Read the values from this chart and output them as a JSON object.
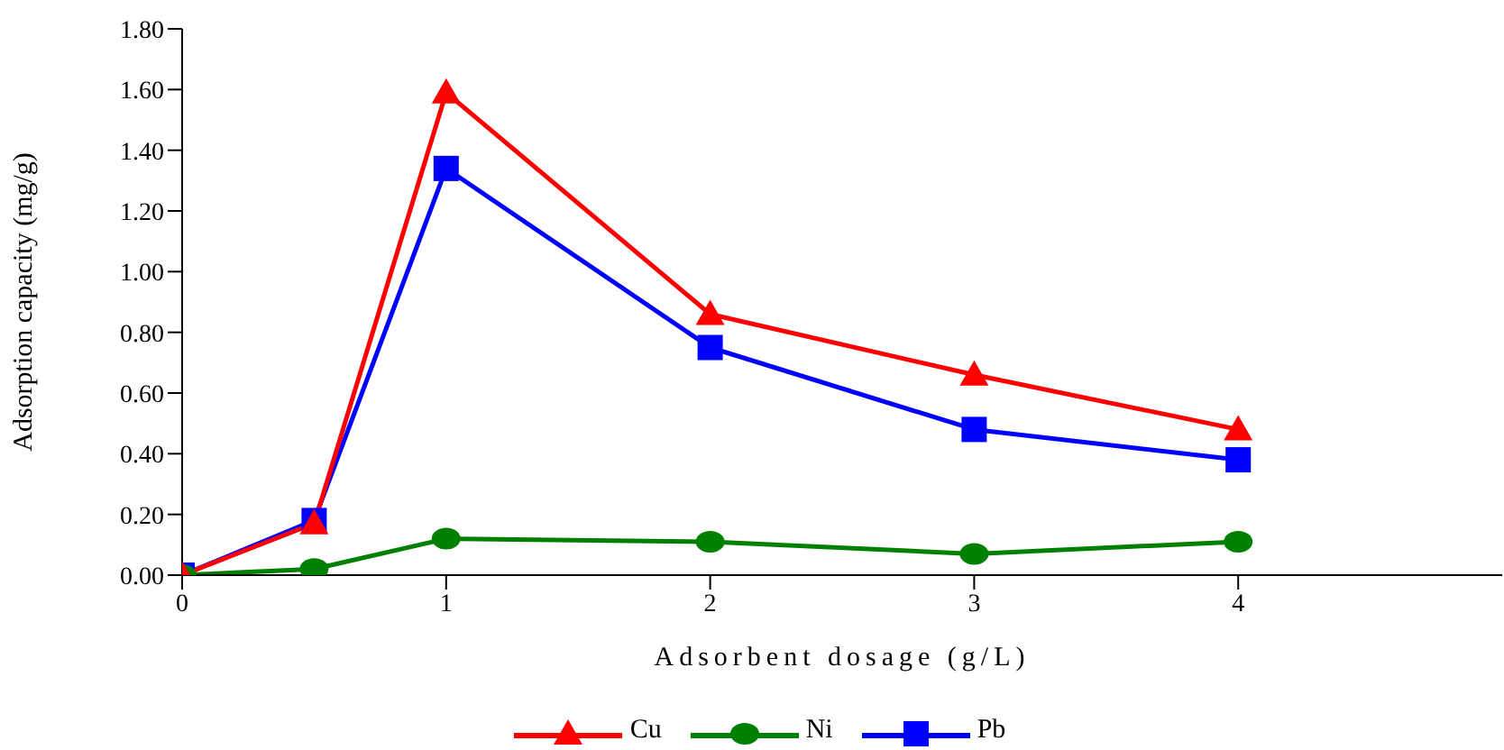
{
  "chart_data": {
    "type": "line",
    "xlabel": "Adsorbent dosage (g/L)",
    "ylabel": "Adsorption capacity (mg/g)",
    "x": [
      0,
      0.5,
      1,
      2,
      3,
      4
    ],
    "xlim": [
      0,
      5
    ],
    "xticks": [
      0,
      1,
      2,
      3,
      4
    ],
    "ylim": [
      0,
      1.8
    ],
    "yticks": [
      {
        "value": 0,
        "label": "0.00"
      },
      {
        "value": 0.2,
        "label": "0.20"
      },
      {
        "value": 0.4,
        "label": "0.40"
      },
      {
        "value": 0.6,
        "label": "0.60"
      },
      {
        "value": 0.8,
        "label": "0.80"
      },
      {
        "value": 1,
        "label": "1.00"
      },
      {
        "value": 1.2,
        "label": "1.20"
      },
      {
        "value": 1.4,
        "label": "1.40"
      },
      {
        "value": 1.6,
        "label": "1.60"
      },
      {
        "value": 1.8,
        "label": "1.80"
      }
    ],
    "grid": false,
    "legend": "bottom",
    "series": [
      {
        "name": "Cu",
        "color": "#ff0000",
        "marker": "triangle",
        "values": [
          0,
          0.17,
          1.59,
          0.86,
          0.66,
          0.48
        ]
      },
      {
        "name": "Ni",
        "color": "#008000",
        "marker": "circle",
        "values": [
          0,
          0.02,
          0.12,
          0.11,
          0.07,
          0.11
        ]
      },
      {
        "name": "Pb",
        "color": "#0000ff",
        "marker": "square",
        "values": [
          0,
          0.18,
          1.34,
          0.75,
          0.48,
          0.38
        ]
      }
    ]
  }
}
